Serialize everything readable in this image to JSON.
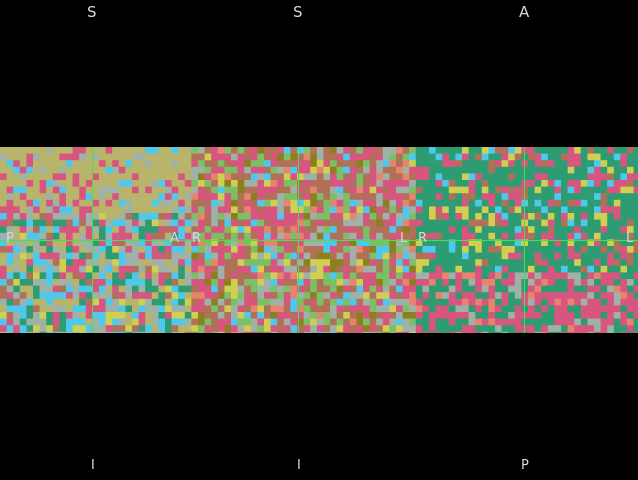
{
  "colors": {
    "background": "#000000",
    "crosshair": "#4be04b",
    "label": "#d8d8d8",
    "palette": {
      "olive": "#b8b46c",
      "pink": "#d8557f",
      "teal": "#2e9c73",
      "cyan": "#4ec9ee",
      "gray": "#9fb2a8",
      "brown": "#b07158",
      "green": "#7bbf66",
      "yellow": "#cfcf52",
      "dkolive": "#8c7f1e",
      "salmon": "#e8836c",
      "purple": "#6f6fa8",
      "rose": "#c96080"
    }
  },
  "panels": [
    {
      "name": "left-view",
      "labels": {
        "top": "S",
        "bottom": "I",
        "left": "P",
        "right": "A"
      }
    },
    {
      "name": "center-view",
      "labels": {
        "top": "S",
        "bottom": "I",
        "left": "R",
        "right": "L"
      }
    },
    {
      "name": "right-view",
      "labels": {
        "top": "A",
        "bottom": "P",
        "left": "R",
        "right": "L"
      }
    }
  ]
}
